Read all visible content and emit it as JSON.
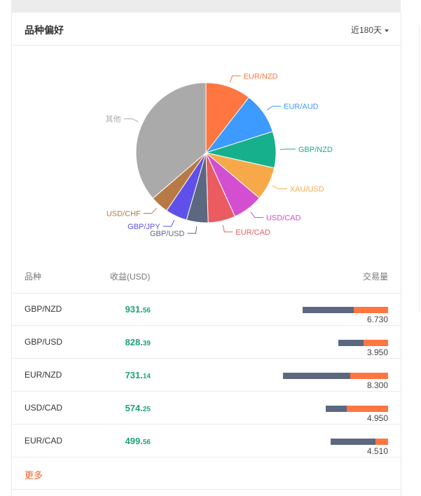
{
  "header": {
    "title": "品种偏好",
    "period": "近180天"
  },
  "chart_data": {
    "type": "pie",
    "slices": [
      {
        "label": "EUR/NZD",
        "value": 10.5,
        "color": "#ff7640"
      },
      {
        "label": "EUR/AUD",
        "value": 9.6,
        "color": "#3d9aff"
      },
      {
        "label": "GBP/NZD",
        "value": 8.4,
        "color": "#17b08c"
      },
      {
        "label": "XAU/USD",
        "value": 7.7,
        "color": "#f7a94a"
      },
      {
        "label": "USD/CAD",
        "value": 7.0,
        "color": "#d34fcf"
      },
      {
        "label": "EUR/CAD",
        "value": 6.3,
        "color": "#ea5b62"
      },
      {
        "label": "GBP/USD",
        "value": 5.0,
        "color": "#5b6880"
      },
      {
        "label": "GBP/JPY",
        "value": 5.0,
        "color": "#6050ea"
      },
      {
        "label": "USD/CHF",
        "value": 4.2,
        "color": "#b87a44"
      },
      {
        "label": "其他",
        "value": 36.3,
        "color": "#aaaaaa"
      }
    ]
  },
  "table": {
    "col_symbol": "品种",
    "col_profit": "收益(USD)",
    "col_volume": "交易量",
    "rows": [
      {
        "symbol": "GBP/NZD",
        "profit_int": "931.",
        "profit_dec": "56",
        "volume": "6.730",
        "part_a": 4.0,
        "part_b": 2.73
      },
      {
        "symbol": "GBP/USD",
        "profit_int": "828.",
        "profit_dec": "39",
        "volume": "3.950",
        "part_a": 2.0,
        "part_b": 1.95
      },
      {
        "symbol": "EUR/NZD",
        "profit_int": "731.",
        "profit_dec": "14",
        "volume": "8.300",
        "part_a": 5.3,
        "part_b": 3.0
      },
      {
        "symbol": "USD/CAD",
        "profit_int": "574.",
        "profit_dec": "25",
        "volume": "4.950",
        "part_a": 1.7,
        "part_b": 3.25
      },
      {
        "symbol": "EUR/CAD",
        "profit_int": "499.",
        "profit_dec": "56",
        "volume": "4.510",
        "part_a": 3.5,
        "part_b": 1.01
      }
    ],
    "colors": {
      "part_a": "#5b6880",
      "part_b": "#ff7640"
    }
  },
  "more_label": "更多"
}
